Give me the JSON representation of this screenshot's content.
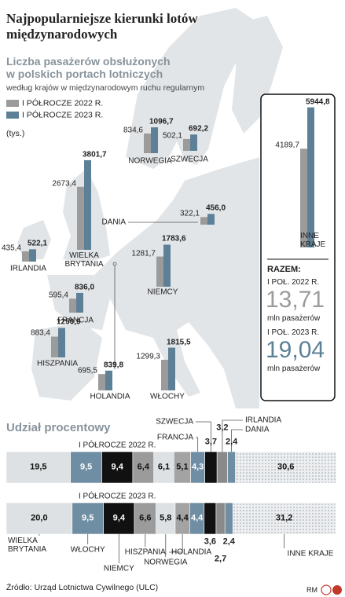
{
  "title": "Najpopularniejsze kierunki lotów międzynarodowych",
  "chart_data": [
    {
      "type": "bar",
      "title": "Liczba pasażerów obsłużonych w polskich portach lotniczych",
      "subtitle": "według krajów w międzynarodowym ruchu regularnym",
      "unit": "(tys.)",
      "categories": [
        "NORWEGIA",
        "SZWECJA",
        "WIELKA BRYTANIA",
        "DANIA",
        "IRLANDIA",
        "NIEMCY",
        "FRANCJA",
        "HISZPANIA",
        "HOLANDIA",
        "WŁOCHY",
        "INNE KRAJE"
      ],
      "series": [
        {
          "name": "I PÓŁROCZE 2022 R.",
          "color": "#9b9b9b",
          "values": [
            834.6,
            502.1,
            2673.4,
            322.1,
            435.4,
            1281.7,
            595.4,
            883.4,
            695.5,
            1299.3,
            4189.7
          ],
          "value_labels": [
            "834,6",
            "502,1",
            "2673,4",
            "322,1",
            "435,4",
            "1281,7",
            "595,4",
            "883,4",
            "695,5",
            "1299,3",
            "4189,7"
          ]
        },
        {
          "name": "I PÓŁROCZE 2023 R.",
          "color": "#5d8097",
          "values": [
            1096.7,
            692.2,
            3801.7,
            456.0,
            522.1,
            1783.6,
            836.0,
            1250.9,
            839.8,
            1815.5,
            5944.8
          ],
          "value_labels": [
            "1096,7",
            "692,2",
            "3801,7",
            "456,0",
            "522,1",
            "1783,6",
            "836,0",
            "1250,9",
            "839,8",
            "1815,5",
            "5944,8"
          ]
        }
      ]
    },
    {
      "type": "stacked_bar",
      "title": "Udział procentowy",
      "categories": [
        "WIELKA BRYTANIA",
        "WŁOCHY",
        "NIEMCY",
        "HISZPANIA",
        "NORWEGIA",
        "HOLANDIA",
        "FRANCJA",
        "SZWECJA",
        "IRLANDIA",
        "DANIA",
        "INNE KRAJE"
      ],
      "colors": [
        "#dde1e4",
        "#6f8ea3",
        "#111111",
        "#9b9b9b",
        "#dde1e4",
        "#a3a3a3",
        "#6f8ea3",
        "#111111",
        "#8a8a8a",
        "#6f8ea3",
        "#e9ebed"
      ],
      "dotted": [
        false,
        false,
        false,
        false,
        false,
        false,
        false,
        false,
        false,
        false,
        true
      ],
      "series": [
        {
          "name": "I PÓŁROCZE 2022 R.",
          "values": [
            19.5,
            9.5,
            9.4,
            6.4,
            6.1,
            5.1,
            4.3,
            3.7,
            3.2,
            2.4,
            30.6
          ],
          "value_labels": [
            "19,5",
            "9,5",
            "9,4",
            "6,4",
            "6,1",
            "5,1",
            "4,3",
            "3,7",
            "3,2",
            "2,4",
            "30,6"
          ]
        },
        {
          "name": "I PÓŁROCZE 2023 R.",
          "values": [
            20.0,
            9.5,
            9.4,
            6.6,
            5.8,
            4.4,
            4.4,
            3.6,
            2.7,
            2.4,
            31.2
          ],
          "value_labels": [
            "20,0",
            "9,5",
            "9,4",
            "6,6",
            "5,8",
            "4,4",
            "4,4",
            "3,6",
            "2,7",
            "2,4",
            "31,2"
          ]
        }
      ]
    }
  ],
  "summary": {
    "label": "RAZEM:",
    "items": [
      {
        "period": "I POŁ. 2022 R.",
        "value": "13,71",
        "unit": "mln pasażerów"
      },
      {
        "period": "I POŁ. 2023 R.",
        "value": "19,04",
        "unit": "mln pasażerów"
      }
    ]
  },
  "source": "Źródło: Urząd Lotnictwa Cywilnego (ULC)",
  "credit": "RM"
}
